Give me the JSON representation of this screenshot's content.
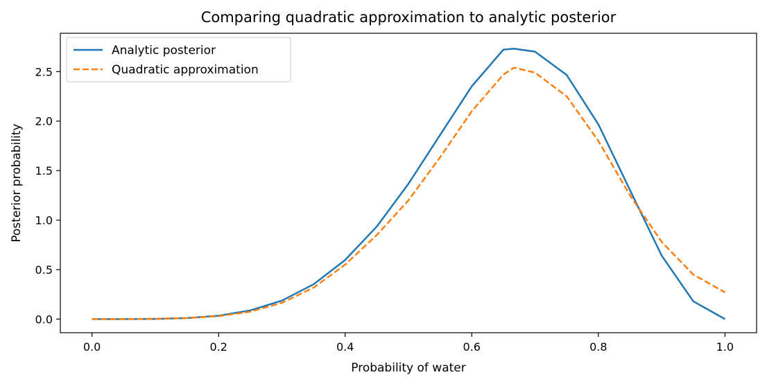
{
  "chart_data": {
    "type": "line",
    "title": "Comparing quadratic approximation to analytic posterior",
    "xlabel": "Probability of water",
    "ylabel": "Posterior probability",
    "xlim": [
      -0.05,
      1.05
    ],
    "ylim": [
      -0.1375,
      2.8875
    ],
    "xticks": [
      0.0,
      0.2,
      0.4,
      0.6,
      0.8,
      1.0
    ],
    "xtick_labels": [
      "0.0",
      "0.2",
      "0.4",
      "0.6",
      "0.8",
      "1.0"
    ],
    "yticks": [
      0.0,
      0.5,
      1.0,
      1.5,
      2.0,
      2.5
    ],
    "ytick_labels": [
      "0.0",
      "0.5",
      "1.0",
      "1.5",
      "2.0",
      "2.5"
    ],
    "grid": false,
    "legend_position": "top-left",
    "series": [
      {
        "name": "Analytic posterior",
        "color": "#1f77b4",
        "style": "solid",
        "x": [
          0.0,
          0.05,
          0.1,
          0.15,
          0.2,
          0.25,
          0.3,
          0.35,
          0.4,
          0.45,
          0.5,
          0.55,
          0.6,
          0.65,
          0.6667,
          0.7,
          0.75,
          0.8,
          0.85,
          0.9,
          0.95,
          1.0
        ],
        "y": [
          0.0,
          0.0,
          0.002,
          0.01,
          0.034,
          0.088,
          0.187,
          0.351,
          0.597,
          0.936,
          1.367,
          1.86,
          2.352,
          2.722,
          2.731,
          2.702,
          2.465,
          1.968,
          1.302,
          0.642,
          0.18,
          0.0
        ]
      },
      {
        "name": "Quadratic approximation",
        "color": "#ff7f0e",
        "style": "dashed",
        "x": [
          0.0,
          0.05,
          0.1,
          0.15,
          0.2,
          0.25,
          0.3,
          0.35,
          0.4,
          0.45,
          0.5,
          0.55,
          0.6,
          0.65,
          0.6667,
          0.7,
          0.75,
          0.8,
          0.85,
          0.9,
          0.95,
          1.0
        ],
        "y": [
          0.0,
          0.0,
          0.003,
          0.01,
          0.03,
          0.075,
          0.164,
          0.318,
          0.55,
          0.85,
          1.2,
          1.635,
          2.1,
          2.47,
          2.54,
          2.49,
          2.25,
          1.8,
          1.25,
          0.78,
          0.45,
          0.27
        ]
      }
    ]
  }
}
